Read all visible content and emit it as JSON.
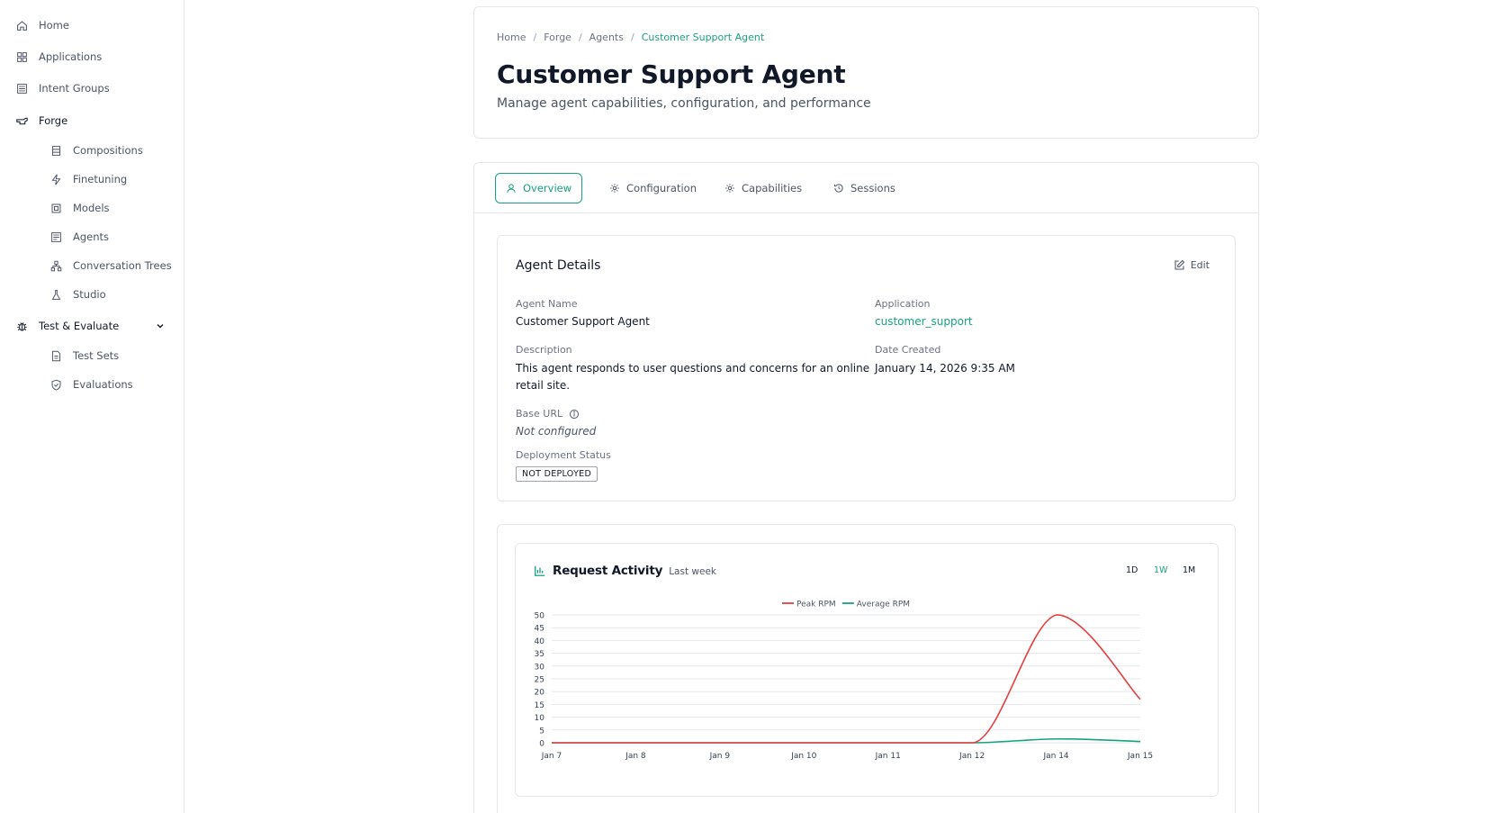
{
  "sidebar": {
    "items": [
      {
        "label": "Home",
        "icon": "home-icon"
      },
      {
        "label": "Applications",
        "icon": "grid-icon"
      },
      {
        "label": "Intent Groups",
        "icon": "list-icon"
      },
      {
        "label": "Forge",
        "icon": "forge-icon"
      },
      {
        "label": "Compositions",
        "icon": "layers-icon"
      },
      {
        "label": "Finetuning",
        "icon": "bolt-icon"
      },
      {
        "label": "Models",
        "icon": "model-icon"
      },
      {
        "label": "Agents",
        "icon": "agent-icon"
      },
      {
        "label": "Conversation Trees",
        "icon": "tree-icon"
      },
      {
        "label": "Studio",
        "icon": "flask-icon"
      },
      {
        "label": "Test & Evaluate",
        "icon": "bug-icon"
      },
      {
        "label": "Test Sets",
        "icon": "file-icon"
      },
      {
        "label": "Evaluations",
        "icon": "shield-icon"
      }
    ]
  },
  "header": {
    "breadcrumb": [
      "Home",
      "Forge",
      "Agents",
      "Customer Support Agent"
    ],
    "title": "Customer Support Agent",
    "subtitle": "Manage agent capabilities, configuration, and performance"
  },
  "tabs": [
    {
      "label": "Overview",
      "active": true
    },
    {
      "label": "Configuration",
      "active": false
    },
    {
      "label": "Capabilities",
      "active": false
    },
    {
      "label": "Sessions",
      "active": false
    }
  ],
  "details": {
    "title": "Agent Details",
    "edit_label": "Edit",
    "agent_name_label": "Agent Name",
    "agent_name": "Customer Support Agent",
    "application_label": "Application",
    "application": "customer_support",
    "description_label": "Description",
    "description_line1": "This agent responds to user questions and concerns for an online",
    "description_line2": "retail site.",
    "date_label": "Date Created",
    "date": "January 14, 2026 9:35 AM",
    "base_url_label": "Base URL",
    "base_url": "Not configured",
    "deployment_label": "Deployment Status",
    "deployment_status": "NOT DEPLOYED"
  },
  "chart_header": {
    "title": "Request Activity",
    "subtitle": "Last week",
    "ranges": [
      "1D",
      "1W",
      "1M"
    ],
    "active_range": "1W"
  },
  "colors": {
    "accent": "#16a37f",
    "peak": "#e53e3e",
    "average": "#16a37f"
  },
  "chart_data": {
    "type": "line",
    "x": [
      "Jan 7",
      "Jan 8",
      "Jan 9",
      "Jan 10",
      "Jan 11",
      "Jan 12",
      "Jan 14",
      "Jan 15"
    ],
    "series": [
      {
        "name": "Peak RPM",
        "values": [
          0,
          0,
          0,
          0,
          0,
          0,
          50,
          17
        ]
      },
      {
        "name": "Average RPM",
        "values": [
          0,
          0,
          0,
          0,
          0,
          0,
          1.5,
          0.5
        ]
      }
    ],
    "yticks": [
      0,
      5,
      10,
      15,
      20,
      25,
      30,
      35,
      40,
      45,
      50
    ],
    "ylim": [
      0,
      50
    ],
    "grid": true,
    "legend": "top-center"
  }
}
